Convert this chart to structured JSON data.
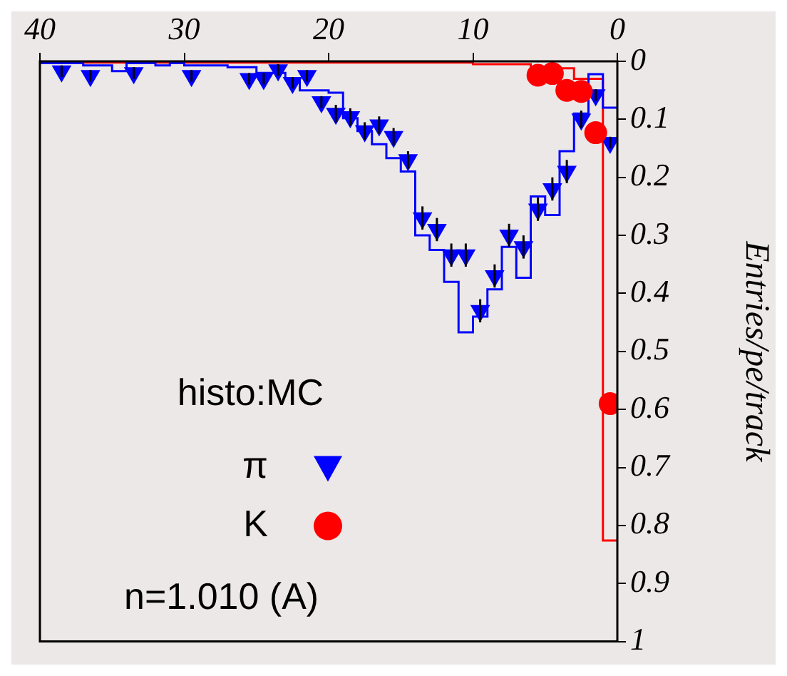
{
  "chart_data": {
    "type": "scatter",
    "ylabel": "Entries/pe/track",
    "legend_title": "n=1.010 (A)",
    "legend": "bottom left",
    "annotations": [
      "histo:MC"
    ],
    "xlim": [
      40,
      0
    ],
    "xticks": [
      0,
      10,
      20,
      30,
      40
    ],
    "ylim": [
      1,
      0
    ],
    "yticks": [
      0,
      0.1,
      0.2,
      0.3,
      0.4,
      0.5,
      0.6,
      0.7,
      0.8,
      0.9,
      1
    ],
    "series": [
      {
        "type": "histogram",
        "color": "#ff0000",
        "bins": [
          0,
          1,
          2,
          3,
          4,
          5,
          6,
          7,
          8,
          9,
          10,
          11,
          12,
          13,
          14,
          15,
          16,
          17,
          18,
          19,
          20,
          21,
          22,
          23,
          24,
          25,
          26,
          27,
          28,
          29,
          30,
          31,
          32,
          33,
          34,
          35,
          36,
          37,
          38,
          39,
          40
        ],
        "values": [
          0.826,
          0.03,
          0.03,
          0.012,
          0.012,
          0.012,
          0.005,
          0.005,
          0.005,
          0.005,
          0.002,
          0.002,
          0.002,
          0.002,
          0.002,
          0.002,
          0.002,
          0.002,
          0.002,
          0.002,
          0.002,
          0.002,
          0.002,
          0.002,
          0.002,
          0.002,
          0.002,
          0.002,
          0.002,
          0.002,
          0.002,
          0.002,
          0.002,
          0.002,
          0.002,
          0.002,
          0.002,
          0.002,
          0.002,
          0.002
        ]
      },
      {
        "type": "histogram",
        "color": "#0000ff",
        "bins": [
          0,
          1,
          2,
          3,
          4,
          5,
          6,
          7,
          8,
          9,
          10,
          11,
          12,
          13,
          14,
          15,
          16,
          17,
          18,
          19,
          20,
          21,
          22,
          23,
          24,
          25,
          26,
          27,
          28,
          29,
          30,
          31,
          32,
          33,
          34,
          35,
          36,
          37,
          38,
          39,
          40
        ],
        "values": [
          0.08,
          0.022,
          0.09,
          0.155,
          0.265,
          0.233,
          0.373,
          0.32,
          0.393,
          0.44,
          0.467,
          0.38,
          0.325,
          0.3,
          0.19,
          0.167,
          0.143,
          0.12,
          0.098,
          0.054,
          0.05,
          0.05,
          0.03,
          0.02,
          0.02,
          0.01,
          0.01,
          0.007,
          0.007,
          0.007,
          0.003,
          0.007,
          0.003,
          0.003,
          0.017,
          0.007,
          0.007,
          0.003,
          0.003,
          0.003
        ]
      },
      {
        "type": "scatter",
        "name": "K",
        "color": "#ff0000",
        "marker": "circle",
        "x": [
          0.5,
          1.5,
          2.5,
          3.5,
          4.5,
          5.5
        ],
        "values": [
          0.59,
          0.123,
          0.052,
          0.05,
          0.021,
          0.024
        ]
      },
      {
        "type": "scatter",
        "name": "π",
        "color": "#0000ff",
        "marker": "triangle",
        "x": [
          0.5,
          1.5,
          2.5,
          3.5,
          4.5,
          5.5,
          6.5,
          7.5,
          8.5,
          9.5,
          10.5,
          11.5,
          12.5,
          13.5,
          14.5,
          15.5,
          16.5,
          17.5,
          18.5,
          19.5,
          20.5,
          21.5,
          22.5,
          23.5,
          24.5,
          25.5,
          29.5,
          33.5,
          36.5,
          38.5
        ],
        "values": [
          0.14,
          0.058,
          0.1,
          0.19,
          0.22,
          0.255,
          0.32,
          0.3,
          0.37,
          0.43,
          0.334,
          0.334,
          0.29,
          0.27,
          0.17,
          0.13,
          0.11,
          0.12,
          0.096,
          0.09,
          0.07,
          0.025,
          0.037,
          0.015,
          0.03,
          0.03,
          0.025,
          0.02,
          0.025,
          0.017
        ],
        "errors": [
          0.01,
          0.01,
          0.015,
          0.02,
          0.02,
          0.02,
          0.02,
          0.02,
          0.02,
          0.02,
          0.02,
          0.02,
          0.02,
          0.02,
          0.015,
          0.015,
          0.015,
          0.015,
          0.015,
          0.015,
          0.01,
          0.01,
          0.01,
          0.01,
          0.01,
          0.01,
          0.01,
          0.01,
          0.01,
          0.01
        ]
      }
    ]
  }
}
